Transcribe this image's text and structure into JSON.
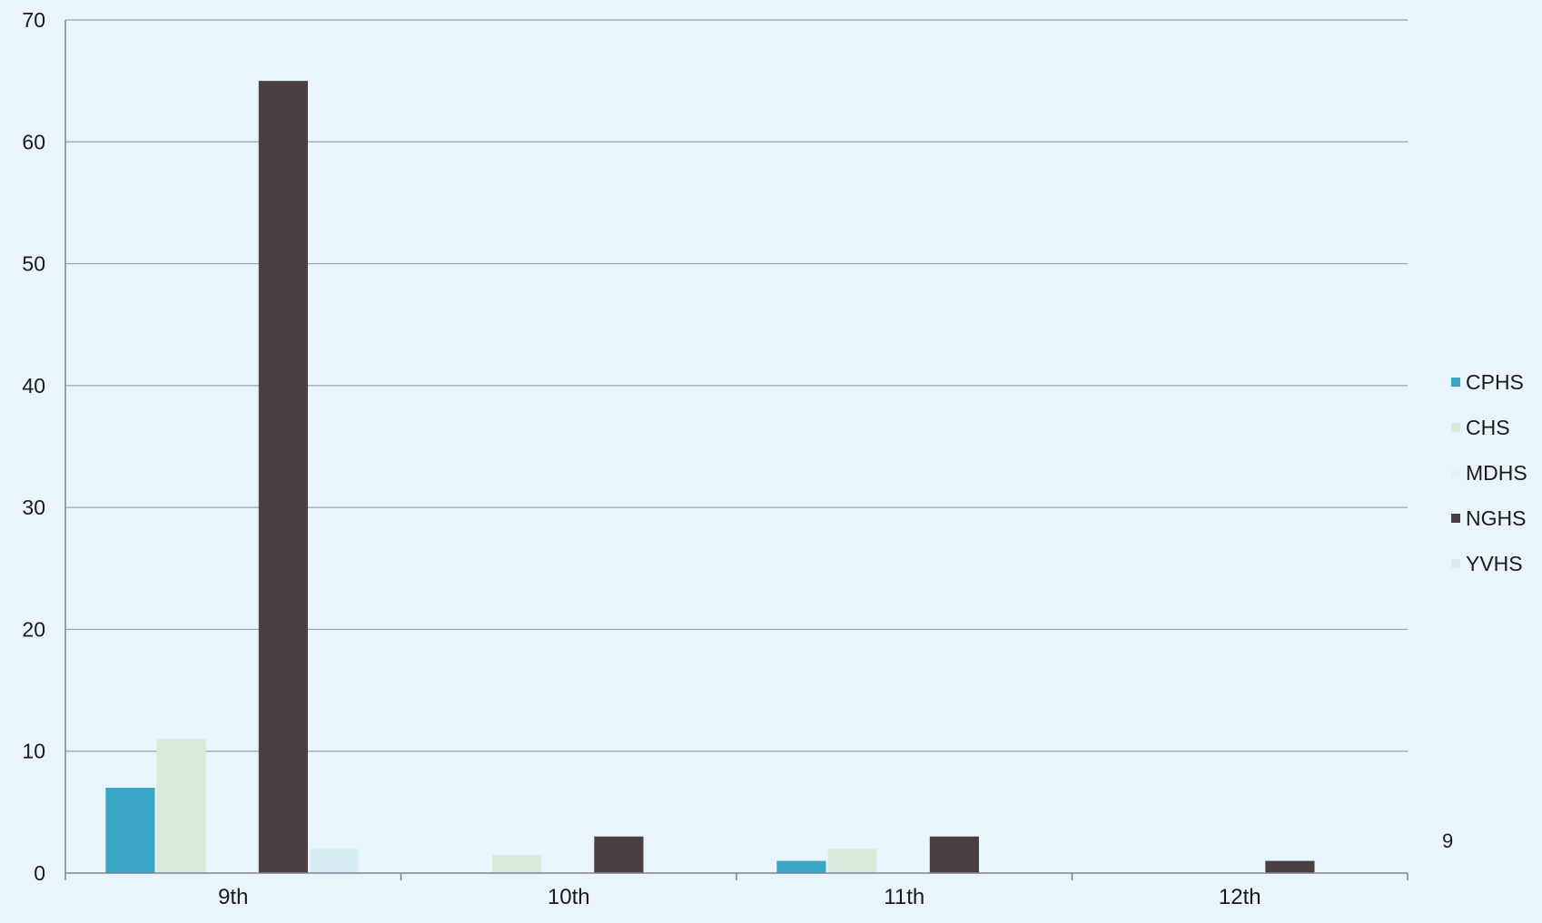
{
  "chart_data": {
    "type": "bar",
    "categories": [
      "9th",
      "10th",
      "11th",
      "12th"
    ],
    "series": [
      {
        "name": "CPHS",
        "values": [
          7,
          0,
          1,
          0
        ],
        "color": "#3aa6c6"
      },
      {
        "name": "CHS",
        "values": [
          11,
          1.5,
          2,
          0
        ],
        "color": "#d9eadb"
      },
      {
        "name": "MDHS",
        "values": [
          0,
          0,
          0,
          0
        ],
        "color": "#e6f1f5"
      },
      {
        "name": "NGHS",
        "values": [
          65,
          3,
          3,
          1
        ],
        "color": "#4a3f40"
      },
      {
        "name": "YVHS",
        "values": [
          2,
          0,
          0,
          0
        ],
        "color": "#d7edf4"
      }
    ],
    "ylim": [
      0,
      70
    ],
    "yticks": [
      0,
      10,
      20,
      30,
      40,
      50,
      60,
      70
    ],
    "grid": true,
    "legend_position": "right"
  },
  "page_number": "9"
}
